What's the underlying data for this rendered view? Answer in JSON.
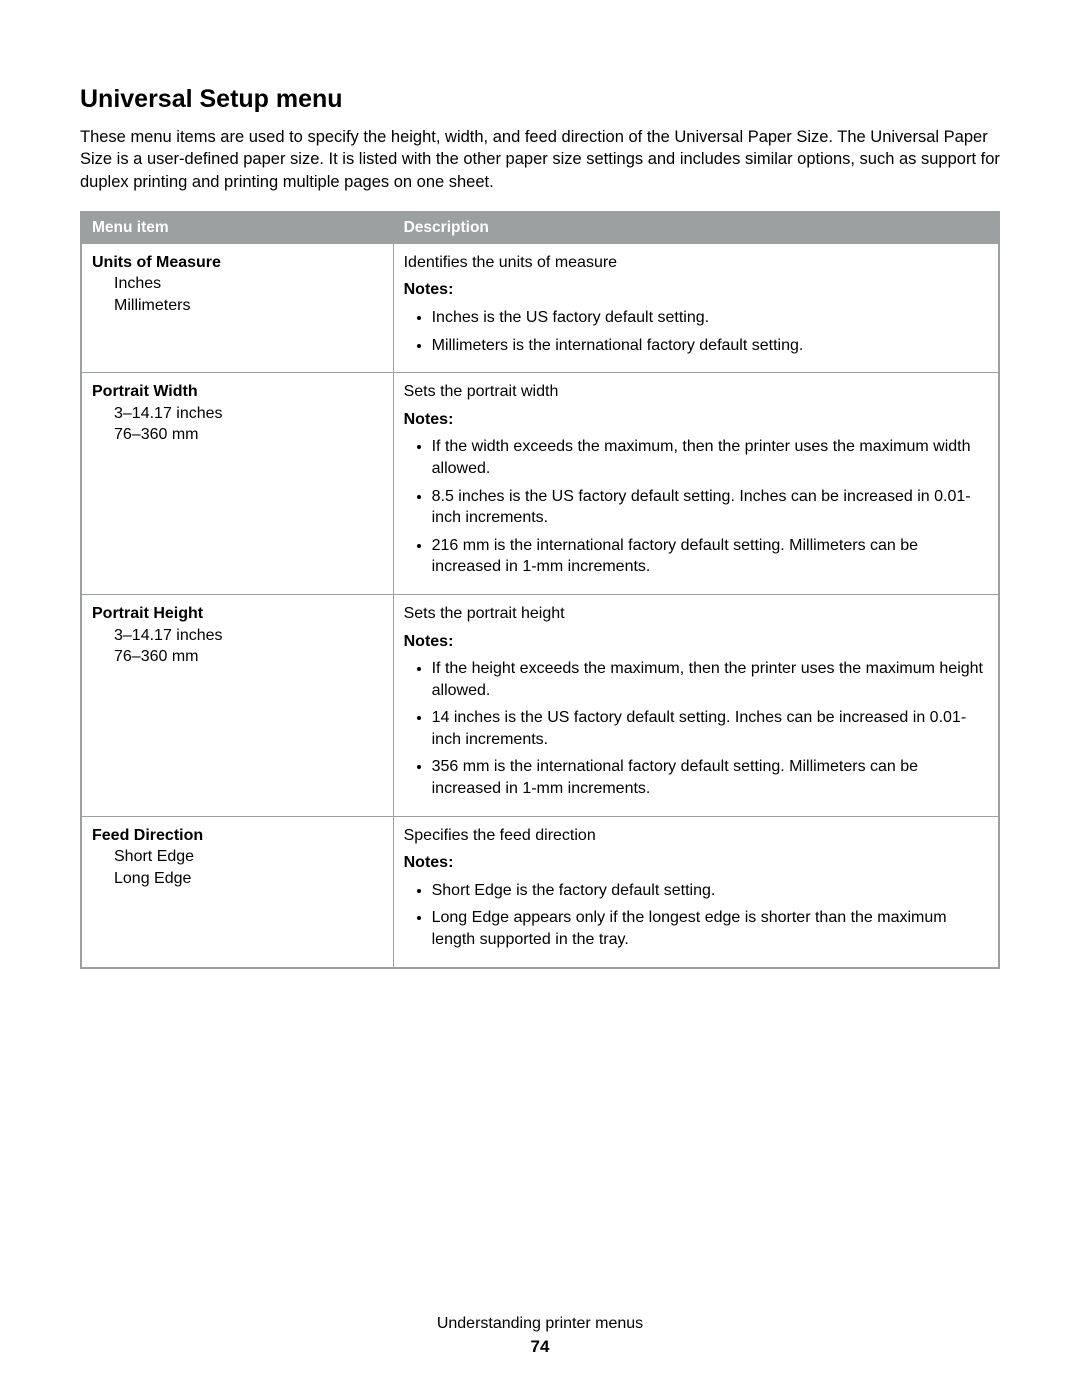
{
  "page": {
    "title": "Universal Setup menu",
    "intro": "These menu items are used to specify the height, width, and feed direction of the Universal Paper Size. The Universal Paper Size is a user-defined paper size. It is listed with the other paper size settings and includes similar options, such as support for duplex printing and printing multiple pages on one sheet.",
    "footer_text": "Understanding printer menus",
    "page_number": "74"
  },
  "table": {
    "header_bg": "#9da0a0",
    "header_fg": "#ffffff",
    "border_color": "#9da0a0",
    "columns": [
      "Menu item",
      "Description"
    ],
    "col_widths": [
      "34%",
      "66%"
    ],
    "rows": [
      {
        "item_title": "Units of Measure",
        "item_subs": [
          "Inches",
          "Millimeters"
        ],
        "desc_line": "Identifies the units of measure",
        "notes_label": "Notes:",
        "notes": [
          "Inches is the US factory default setting.",
          "Millimeters is the international factory default setting."
        ]
      },
      {
        "item_title": "Portrait Width",
        "item_subs": [
          "3–14.17 inches",
          "76–360 mm"
        ],
        "desc_line": "Sets the portrait width",
        "notes_label": "Notes:",
        "notes": [
          "If the width exceeds the maximum, then the printer uses the maximum width allowed.",
          "8.5 inches is the US factory default setting. Inches can be increased in 0.01-inch increments.",
          "216 mm is the international factory default setting. Millimeters can be increased in 1-mm increments."
        ]
      },
      {
        "item_title": "Portrait Height",
        "item_subs": [
          "3–14.17 inches",
          "76–360 mm"
        ],
        "desc_line": "Sets the portrait height",
        "notes_label": "Notes:",
        "notes": [
          "If the height exceeds the maximum, then the printer uses the maximum height allowed.",
          "14 inches is the US factory default setting. Inches can be increased in 0.01-inch increments.",
          "356 mm is the international factory default setting. Millimeters can be increased in 1-mm increments."
        ]
      },
      {
        "item_title": "Feed Direction",
        "item_subs": [
          "Short Edge",
          "Long Edge"
        ],
        "desc_line": "Specifies the feed direction",
        "notes_label": "Notes:",
        "notes": [
          "Short Edge is the factory default setting.",
          "Long Edge appears only if the longest edge is shorter than the maximum length supported in the tray."
        ]
      }
    ]
  }
}
